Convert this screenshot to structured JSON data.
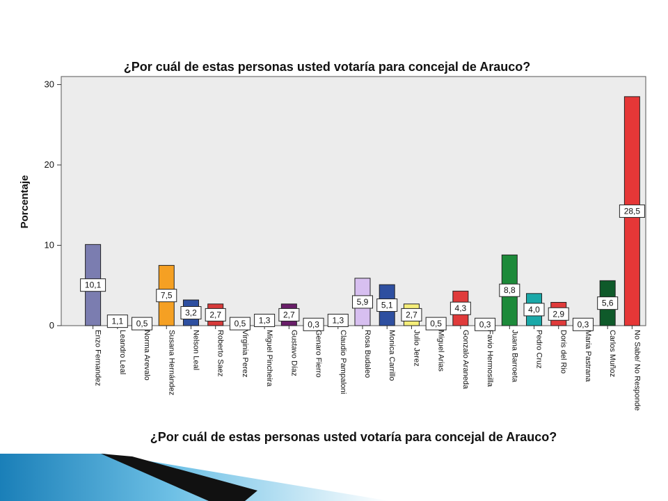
{
  "chart_data": {
    "type": "bar",
    "title": "¿Por cuál de estas personas usted votaría para concejal de Arauco?",
    "xlabel": "¿Por cuál de estas personas usted votaría para concejal de Arauco?",
    "ylabel": "Porcentaje",
    "ylim": [
      0,
      30
    ],
    "yticks": [
      0,
      10,
      20,
      30
    ],
    "grid": false,
    "categories": [
      "Enzo Fernandez",
      "Leandro Leal",
      "Norma Arevalo",
      "Susana Hernández",
      "Nelson Leal",
      "Roberto Saez",
      "Virginia Perez",
      "Miguel Pincheira",
      "Gustavo Díaz",
      "Genaro Fierro",
      "Claudio Pampaloni",
      "Rosa Budaleo",
      "Monica Carrillo",
      "Julio Jerez",
      "Miguel Arias",
      "Gonzalo Araneda",
      "Favio Hermosilla",
      "Juana Barroeta",
      "Pedro Cruz",
      "Doris del Rio",
      "Maria Pastrana",
      "Carlos Muñoz",
      "No Sabe/ No Responde"
    ],
    "values": [
      10.1,
      1.1,
      0.5,
      7.5,
      3.2,
      2.7,
      0.5,
      1.3,
      2.7,
      0.3,
      1.3,
      5.9,
      5.1,
      2.7,
      0.5,
      4.3,
      0.3,
      8.8,
      4.0,
      2.9,
      0.3,
      5.6,
      28.5
    ],
    "data_labels": [
      "10,1",
      "1,1",
      "0,5",
      "7,5",
      "3,2",
      "2,7",
      "0,5",
      "1,3",
      "2,7",
      "0,3",
      "1,3",
      "5,9",
      "5,1",
      "2,7",
      "0,5",
      "4,3",
      "0,3",
      "8,8",
      "4,0",
      "2,9",
      "0,3",
      "5,6",
      "28,5"
    ],
    "colors": [
      "#7b7db0",
      "#8a8a8a",
      "#a05050",
      "#f5a023",
      "#2e4fa0",
      "#d73a3a",
      "#b0b0b0",
      "#3a3a8a",
      "#6a1e6a",
      "#d8d8d8",
      "#e6e6e6",
      "#d7bff0",
      "#2e4fa0",
      "#f5ee7a",
      "#a0a0a0",
      "#e03b3b",
      "#c8c8c8",
      "#1d8a3a",
      "#1aa8a8",
      "#e03b3b",
      "#c0c0c0",
      "#0f5a2a",
      "#e63737"
    ]
  }
}
